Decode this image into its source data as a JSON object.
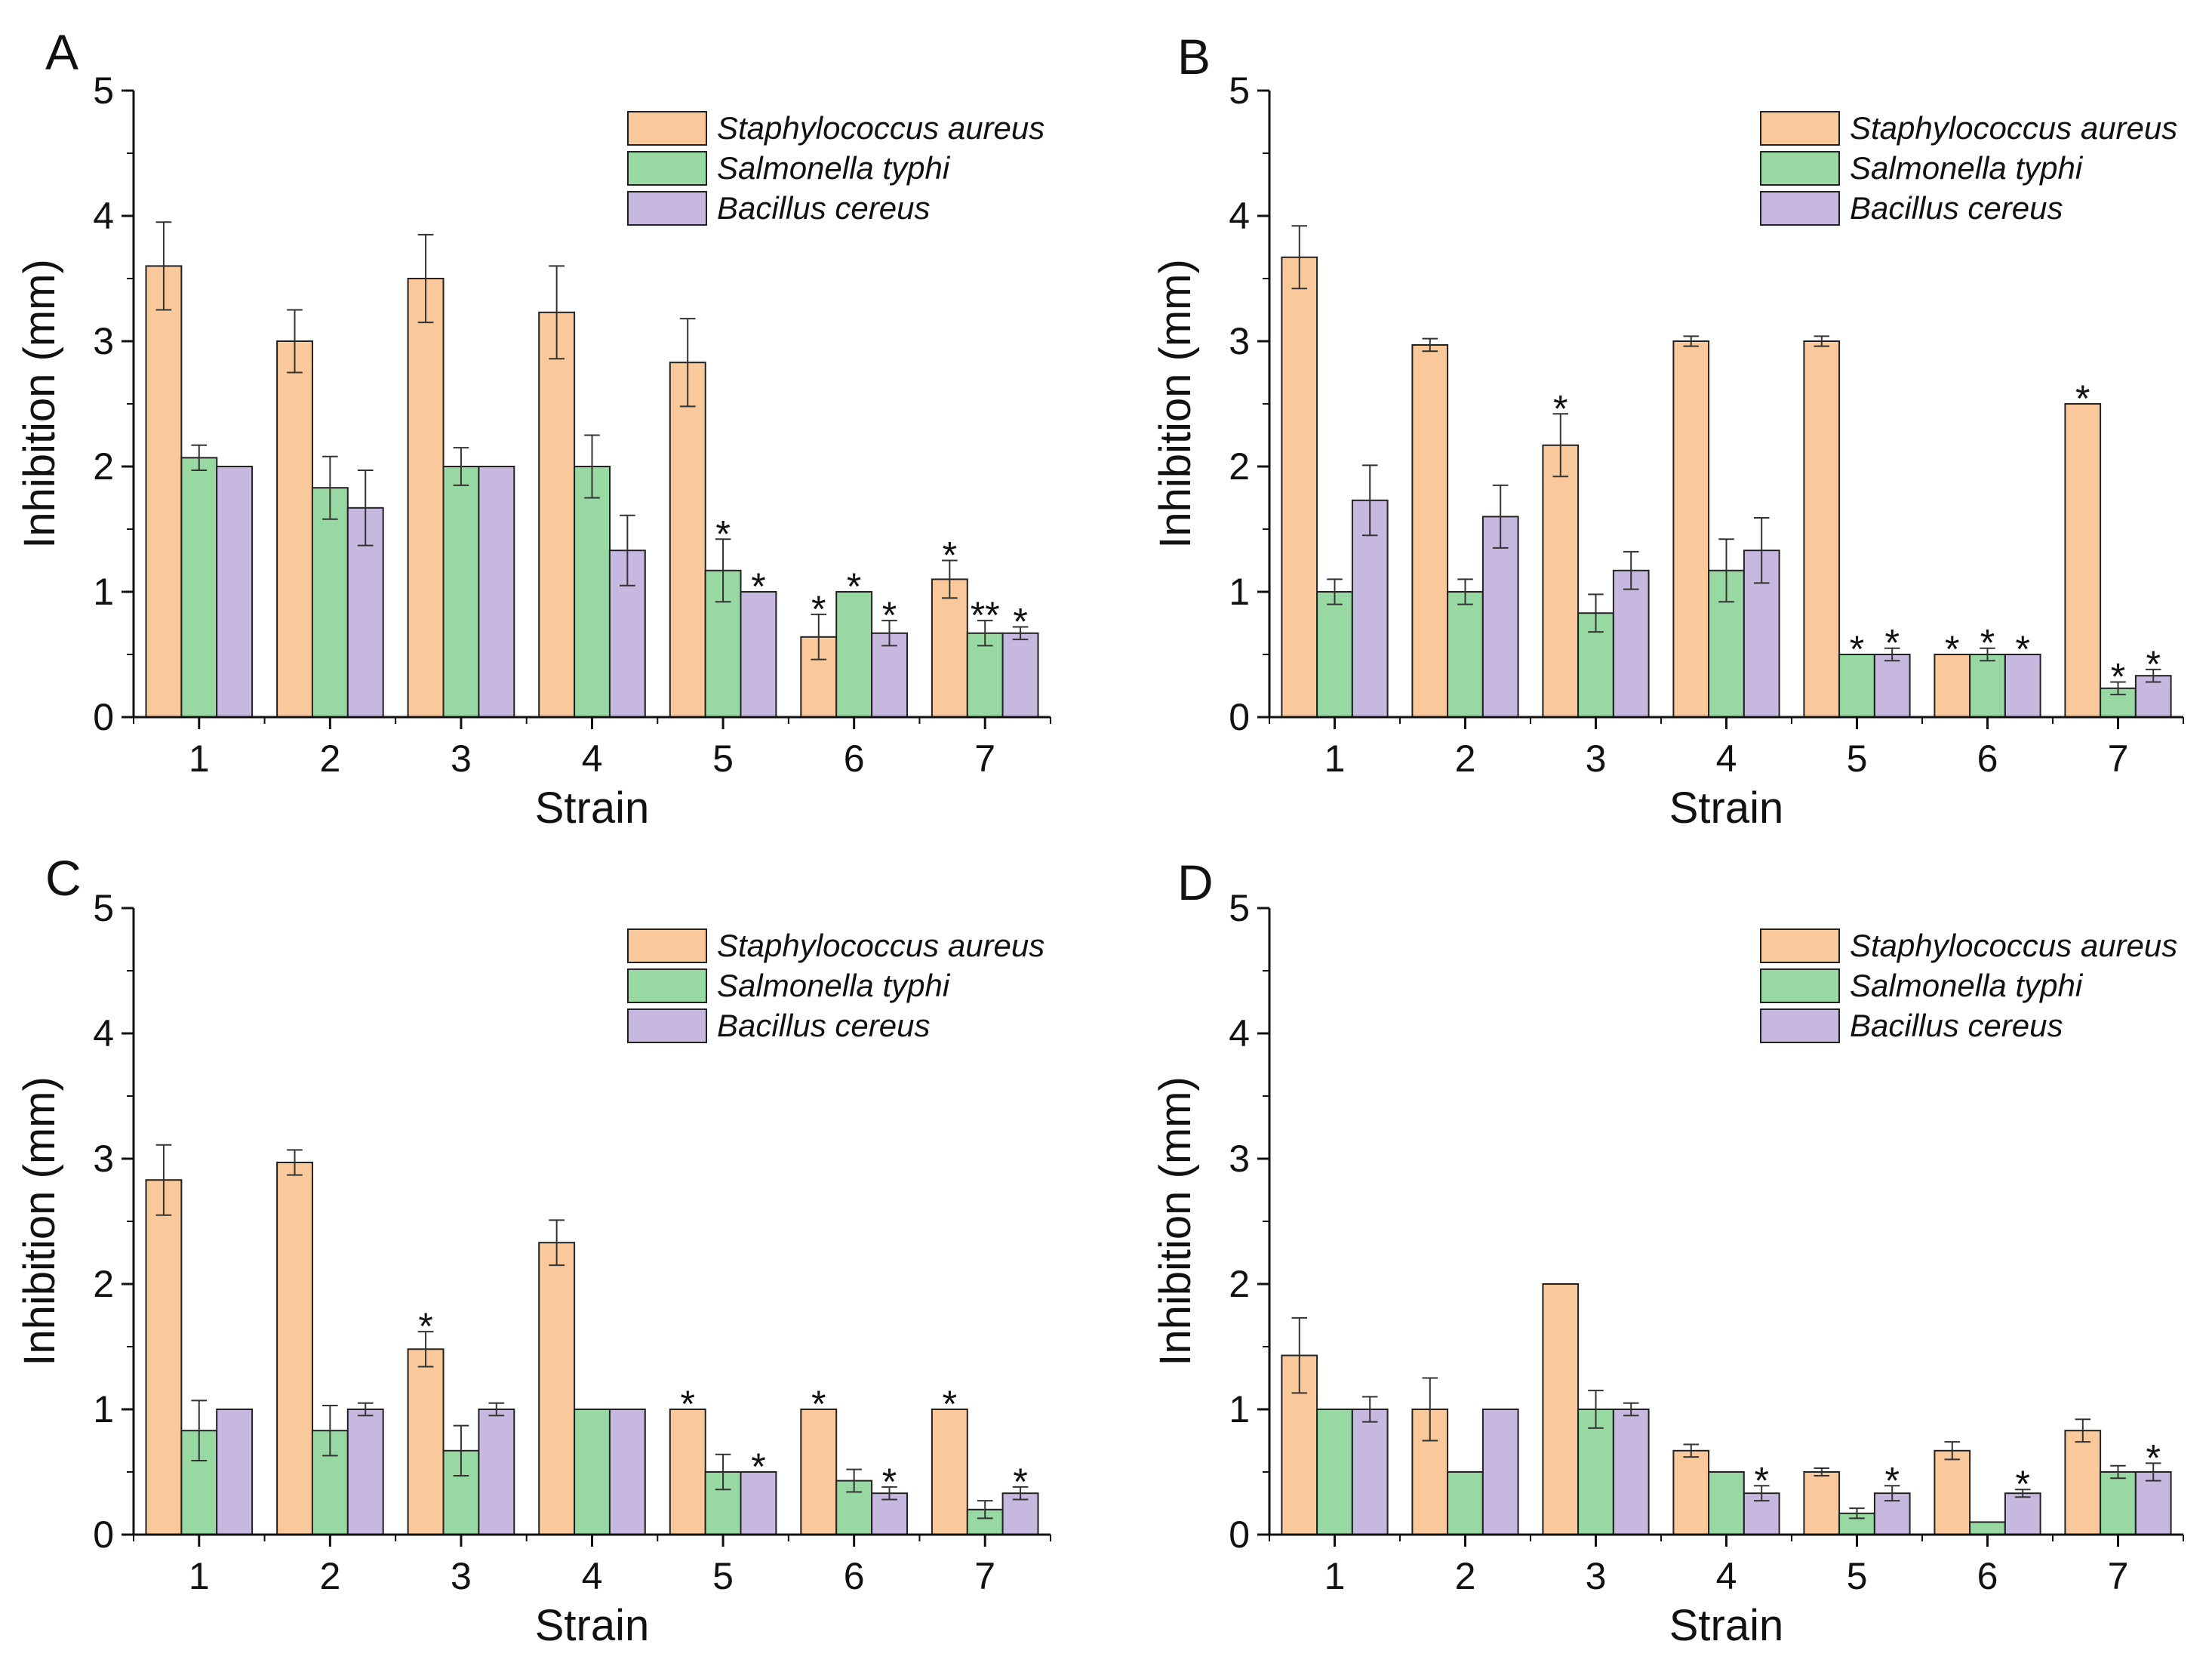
{
  "chart_data": [
    {
      "panel": "A",
      "type": "bar",
      "xlabel": "Strain",
      "ylabel": "Inhibition (mm)",
      "categories": [
        "1",
        "2",
        "3",
        "4",
        "5",
        "6",
        "7"
      ],
      "ylim": [
        0,
        5
      ],
      "yticks": [
        "0",
        "1",
        "2",
        "3",
        "4",
        "5"
      ],
      "legend_position": "top-right",
      "series": [
        {
          "name": "Staphylococcus aureus",
          "color": "#F9C89B",
          "values": [
            3.6,
            3.0,
            3.5,
            3.23,
            2.83,
            0.64,
            1.1
          ],
          "errors": [
            0.35,
            0.25,
            0.35,
            0.37,
            0.35,
            0.18,
            0.15
          ],
          "stars": [
            "",
            "",
            "",
            "",
            "",
            "*",
            "*"
          ]
        },
        {
          "name": "Salmonella typhi",
          "color": "#97D8A3",
          "values": [
            2.07,
            1.83,
            2.0,
            2.0,
            1.17,
            1.0,
            0.67
          ],
          "errors": [
            0.1,
            0.25,
            0.15,
            0.25,
            0.25,
            0.0,
            0.1
          ],
          "stars": [
            "",
            "",
            "",
            "",
            "*",
            "*",
            "**"
          ]
        },
        {
          "name": "Bacillus cereus",
          "color": "#C7B8E0",
          "values": [
            2.0,
            1.67,
            2.0,
            1.33,
            1.0,
            0.67,
            0.67
          ],
          "errors": [
            0.0,
            0.3,
            0.0,
            0.28,
            0.0,
            0.1,
            0.05
          ],
          "stars": [
            "",
            "",
            "",
            "",
            "*",
            "*",
            "*"
          ]
        }
      ]
    },
    {
      "panel": "B",
      "type": "bar",
      "xlabel": "Strain",
      "ylabel": "Inhibition (mm)",
      "categories": [
        "1",
        "2",
        "3",
        "4",
        "5",
        "6",
        "7"
      ],
      "ylim": [
        0,
        5
      ],
      "yticks": [
        "0",
        "1",
        "2",
        "3",
        "4",
        "5"
      ],
      "legend_position": "top-right",
      "series": [
        {
          "name": "Staphylococcus aureus",
          "color": "#F9C89B",
          "values": [
            3.67,
            2.97,
            2.17,
            3.0,
            3.0,
            0.5,
            2.5
          ],
          "errors": [
            0.25,
            0.05,
            0.25,
            0.04,
            0.04,
            0.0,
            0.0
          ],
          "stars": [
            "",
            "",
            "*",
            "",
            "",
            "*",
            "*"
          ]
        },
        {
          "name": "Salmonella typhi",
          "color": "#97D8A3",
          "values": [
            1.0,
            1.0,
            0.83,
            1.17,
            0.5,
            0.5,
            0.23
          ],
          "errors": [
            0.1,
            0.1,
            0.15,
            0.25,
            0.0,
            0.05,
            0.05
          ],
          "stars": [
            "",
            "",
            "",
            "",
            "*",
            "*",
            "*"
          ]
        },
        {
          "name": "Bacillus cereus",
          "color": "#C7B8E0",
          "values": [
            1.73,
            1.6,
            1.17,
            1.33,
            0.5,
            0.5,
            0.33
          ],
          "errors": [
            0.28,
            0.25,
            0.15,
            0.26,
            0.05,
            0.0,
            0.05
          ],
          "stars": [
            "",
            "",
            "",
            "",
            "*",
            "*",
            "*"
          ]
        }
      ]
    },
    {
      "panel": "C",
      "type": "bar",
      "xlabel": "Strain",
      "ylabel": "Inhibition (mm)",
      "categories": [
        "1",
        "2",
        "3",
        "4",
        "5",
        "6",
        "7"
      ],
      "ylim": [
        0,
        5
      ],
      "yticks": [
        "0",
        "1",
        "2",
        "3",
        "4",
        "5"
      ],
      "legend_position": "top-right",
      "series": [
        {
          "name": "Staphylococcus aureus",
          "color": "#F9C89B",
          "values": [
            2.83,
            2.97,
            1.48,
            2.33,
            1.0,
            1.0,
            1.0
          ],
          "errors": [
            0.28,
            0.1,
            0.14,
            0.18,
            0.0,
            0.0,
            0.0
          ],
          "stars": [
            "",
            "",
            "*",
            "",
            "*",
            "*",
            "*"
          ]
        },
        {
          "name": "Salmonella typhi",
          "color": "#97D8A3",
          "values": [
            0.83,
            0.83,
            0.67,
            1.0,
            0.5,
            0.43,
            0.2
          ],
          "errors": [
            0.24,
            0.2,
            0.2,
            0.0,
            0.14,
            0.09,
            0.07
          ],
          "stars": [
            "",
            "",
            "",
            "",
            "",
            "",
            ""
          ]
        },
        {
          "name": "Bacillus cereus",
          "color": "#C7B8E0",
          "values": [
            1.0,
            1.0,
            1.0,
            1.0,
            0.5,
            0.33,
            0.33
          ],
          "errors": [
            0.0,
            0.05,
            0.05,
            0.0,
            0.0,
            0.05,
            0.05
          ],
          "stars": [
            "",
            "",
            "",
            "",
            "*",
            "*",
            "*"
          ]
        }
      ]
    },
    {
      "panel": "D",
      "type": "bar",
      "xlabel": "Strain",
      "ylabel": "Inhibition (mm)",
      "categories": [
        "1",
        "2",
        "3",
        "4",
        "5",
        "6",
        "7"
      ],
      "ylim": [
        0,
        5
      ],
      "yticks": [
        "0",
        "1",
        "2",
        "3",
        "4",
        "5"
      ],
      "legend_position": "top-right",
      "series": [
        {
          "name": "Staphylococcus aureus",
          "color": "#F9C89B",
          "values": [
            1.43,
            1.0,
            2.0,
            0.67,
            0.5,
            0.67,
            0.83
          ],
          "errors": [
            0.3,
            0.25,
            0.0,
            0.05,
            0.03,
            0.07,
            0.09
          ],
          "stars": [
            "",
            "",
            "",
            "",
            "",
            "",
            ""
          ]
        },
        {
          "name": "Salmonella typhi",
          "color": "#97D8A3",
          "values": [
            1.0,
            0.5,
            1.0,
            0.5,
            0.17,
            0.1,
            0.5
          ],
          "errors": [
            0.0,
            0.0,
            0.15,
            0.0,
            0.04,
            0.0,
            0.05
          ],
          "stars": [
            "",
            "",
            "",
            "",
            "",
            "",
            ""
          ]
        },
        {
          "name": "Bacillus cereus",
          "color": "#C7B8E0",
          "values": [
            1.0,
            1.0,
            1.0,
            0.33,
            0.33,
            0.33,
            0.5
          ],
          "errors": [
            0.1,
            0.0,
            0.05,
            0.06,
            0.06,
            0.03,
            0.07
          ],
          "stars": [
            "",
            "",
            "",
            "*",
            "*",
            "*",
            "*"
          ]
        }
      ]
    }
  ]
}
